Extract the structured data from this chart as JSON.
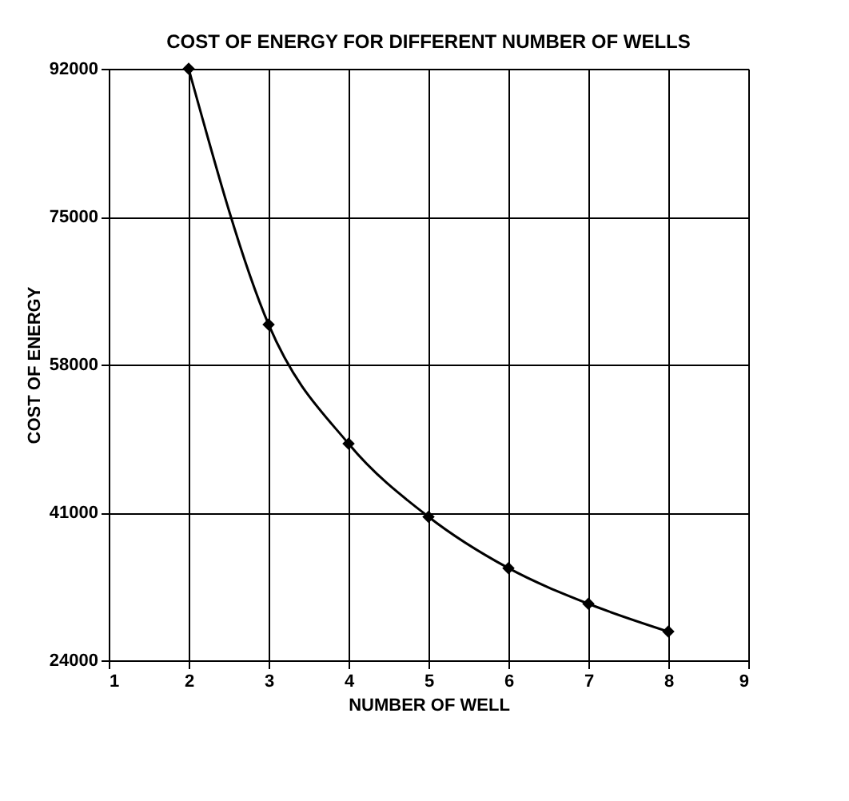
{
  "chart_data": {
    "type": "line",
    "title": "COST OF ENERGY FOR DIFFERENT NUMBER OF WELLS",
    "xlabel": "NUMBER OF WELL",
    "ylabel": "COST OF ENERGY",
    "x": [
      2,
      3,
      4,
      5,
      6,
      7,
      8
    ],
    "series": [
      {
        "color": "#000000",
        "values": [
          92000,
          62600,
          48900,
          40500,
          34600,
          30500,
          27300
        ]
      }
    ],
    "xlim": [
      1,
      9
    ],
    "xticks": [
      1,
      2,
      3,
      4,
      5,
      6,
      7,
      8,
      9
    ],
    "ylim": [
      24000,
      92000
    ],
    "yticks": [
      24000,
      41000,
      58000,
      75000,
      92000
    ],
    "grid": true,
    "marker": "diamond",
    "line_style": "solid",
    "legend": false
  }
}
